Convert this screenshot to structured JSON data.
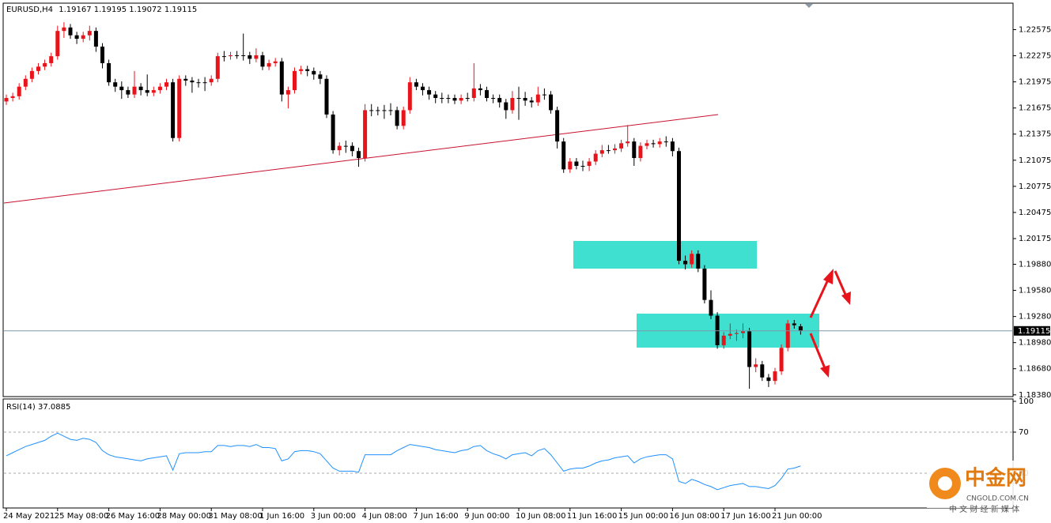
{
  "chart_data": [
    {
      "type": "candlestick",
      "title": "EURUSD,H4",
      "categories": [
        "24 May 2021",
        null,
        null,
        null,
        null,
        null,
        null,
        null,
        "25 May 08:00",
        null,
        null,
        null,
        null,
        null,
        null,
        null,
        "26 May 16:00",
        null,
        null,
        null,
        null,
        null,
        null,
        null,
        "28 May 00:00",
        null,
        null,
        null,
        null,
        null,
        null,
        null,
        "31 May 08:00",
        null,
        null,
        null,
        null,
        null,
        null,
        null,
        "1 Jun 16:00",
        null,
        null,
        null,
        null,
        null,
        null,
        null,
        "3 Jun 00:00",
        null,
        null,
        null,
        null,
        null,
        null,
        null,
        "4 Jun 08:00",
        null,
        null,
        null,
        null,
        null,
        null,
        null,
        "7 Jun 16:00",
        null,
        null,
        null,
        null,
        null,
        null,
        null,
        "9 Jun 00:00",
        null,
        null,
        null,
        null,
        null,
        null,
        null,
        "10 Jun 08:00",
        null,
        null,
        null,
        null,
        null,
        null,
        null,
        "11 Jun 16:00",
        null,
        null,
        null,
        null,
        null,
        null,
        null,
        "15 Jun 00:00",
        null,
        null,
        null,
        null,
        null,
        null,
        null,
        "16 Jun 08:00",
        null,
        null,
        null,
        null,
        null,
        null,
        null,
        "17 Jun 16:00",
        null,
        null,
        null,
        null,
        null,
        null,
        null,
        "21 Jun 00:00",
        null,
        null,
        null,
        null
      ],
      "open": [
        1.2175,
        1.2179,
        1.2181,
        1.2192,
        1.2201,
        1.221,
        1.2215,
        1.2219,
        1.2227,
        1.2256,
        1.226,
        1.2251,
        1.2247,
        1.2251,
        1.2256,
        1.2238,
        1.2219,
        1.2197,
        1.2192,
        1.2188,
        1.2183,
        1.2192,
        1.2188,
        1.2185,
        1.2188,
        1.2192,
        1.2197,
        1.2133,
        1.2201,
        1.2199,
        1.2197,
        1.2197,
        1.2197,
        1.2201,
        1.2227,
        1.2227,
        1.2228,
        1.2228,
        1.2228,
        1.2224,
        1.2228,
        1.2215,
        1.2219,
        1.2221,
        1.2183,
        1.2188,
        1.221,
        1.2212,
        1.221,
        1.2206,
        1.2201,
        1.216,
        1.2119,
        1.2124,
        1.2124,
        1.2118,
        1.211,
        1.2165,
        1.2165,
        1.2165,
        1.2165,
        1.2165,
        1.2147,
        1.2165,
        1.2197,
        1.2192,
        1.2188,
        1.2183,
        1.2179,
        1.2179,
        1.2179,
        1.2176,
        1.2179,
        1.2179,
        1.219,
        1.2188,
        1.2179,
        1.2179,
        1.2174,
        1.2165,
        1.2179,
        1.2179,
        1.2176,
        1.2174,
        1.2183,
        1.2183,
        1.2165,
        1.2129,
        1.2097,
        1.2106,
        1.2101,
        1.2101,
        1.2106,
        1.2115,
        1.2119,
        1.2119,
        1.2121,
        1.2127,
        1.2129,
        1.211,
        1.2124,
        1.2127,
        1.2126,
        1.2129,
        1.2129,
        1.2118,
        1.1992,
        1.1988,
        1.2,
        1.1983,
        1.1947,
        1.1929,
        1.1895,
        1.1906,
        1.1908,
        1.1909,
        1.1911,
        1.187,
        1.1873,
        1.1858,
        1.1854,
        1.1865,
        1.1892,
        1.192,
        1.19167
      ],
      "high": [
        1.2183,
        1.2185,
        1.2196,
        1.2205,
        1.2214,
        1.2219,
        1.2223,
        1.2231,
        1.2262,
        1.2266,
        1.2264,
        1.2255,
        1.2255,
        1.2262,
        1.226,
        1.2242,
        1.2223,
        1.2201,
        1.2198,
        1.2192,
        1.221,
        1.2196,
        1.2206,
        1.2192,
        1.2196,
        1.2201,
        1.2201,
        1.2205,
        1.2205,
        1.2203,
        1.2201,
        1.2203,
        1.2205,
        1.2231,
        1.2233,
        1.2232,
        1.2233,
        1.2253,
        1.2232,
        1.2236,
        1.2232,
        1.2223,
        1.2225,
        1.2225,
        1.2192,
        1.2214,
        1.2216,
        1.2216,
        1.2214,
        1.221,
        1.2205,
        1.2164,
        1.2128,
        1.213,
        1.2128,
        1.2122,
        1.2172,
        1.2172,
        1.2169,
        1.2171,
        1.2173,
        1.2169,
        1.2169,
        1.2203,
        1.2201,
        1.2196,
        1.2192,
        1.2187,
        1.2185,
        1.2183,
        1.2183,
        1.2183,
        1.2185,
        1.2219,
        1.2195,
        1.2192,
        1.2183,
        1.2183,
        1.2178,
        1.2187,
        1.2192,
        1.2186,
        1.218,
        1.2192,
        1.219,
        1.2187,
        1.2169,
        1.2133,
        1.211,
        1.211,
        1.2107,
        1.211,
        1.2119,
        1.2125,
        1.2125,
        1.2126,
        1.2131,
        1.2148,
        1.2133,
        1.2128,
        1.2131,
        1.2131,
        1.2133,
        1.2135,
        1.2133,
        1.2122,
        1.1998,
        1.2004,
        1.2004,
        1.1987,
        1.1958,
        1.1933,
        1.191,
        1.192,
        1.1913,
        1.192,
        1.1915,
        1.188,
        1.1877,
        1.1862,
        1.1869,
        1.1896,
        1.1924,
        1.1924,
        1.19195
      ],
      "low": [
        1.2171,
        1.2175,
        1.2177,
        1.2188,
        1.2197,
        1.2206,
        1.2211,
        1.2215,
        1.2223,
        1.2248,
        1.2247,
        1.2241,
        1.2243,
        1.2245,
        1.2232,
        1.2213,
        1.2193,
        1.2186,
        1.2178,
        1.2179,
        1.2179,
        1.2182,
        1.2181,
        1.2181,
        1.2184,
        1.2188,
        1.2129,
        1.2129,
        1.2193,
        1.2185,
        1.2191,
        1.2187,
        1.2193,
        1.2197,
        1.2221,
        1.2223,
        1.2224,
        1.2222,
        1.2218,
        1.222,
        1.2211,
        1.2211,
        1.2215,
        1.2175,
        1.2167,
        1.2184,
        1.2206,
        1.2204,
        1.22,
        1.2195,
        1.2156,
        1.2115,
        1.2113,
        1.2116,
        1.2112,
        1.21,
        1.2106,
        1.2158,
        1.2159,
        1.2155,
        1.2159,
        1.2143,
        1.2143,
        1.2161,
        1.2188,
        1.2182,
        1.2177,
        1.2173,
        1.2173,
        1.2173,
        1.2172,
        1.2172,
        1.2175,
        1.2175,
        1.2182,
        1.2175,
        1.2173,
        1.2168,
        1.2155,
        1.2161,
        1.2154,
        1.217,
        1.2168,
        1.217,
        1.2177,
        1.2161,
        1.2121,
        1.2093,
        1.2093,
        1.2097,
        1.2095,
        1.2095,
        1.2102,
        1.2111,
        1.2115,
        1.2115,
        1.2117,
        1.2123,
        1.2101,
        1.2106,
        1.212,
        1.2122,
        1.2122,
        1.2123,
        1.2112,
        1.1988,
        1.1982,
        1.1984,
        1.1979,
        1.1943,
        1.1925,
        1.1891,
        1.1891,
        1.1902,
        1.19,
        1.1903,
        1.1845,
        1.1864,
        1.1854,
        1.1847,
        1.185,
        1.1861,
        1.1888,
        1.1914,
        1.19072
      ],
      "close": [
        1.2179,
        1.2181,
        1.2192,
        1.2201,
        1.221,
        1.2215,
        1.2219,
        1.2227,
        1.2256,
        1.226,
        1.2251,
        1.2247,
        1.2251,
        1.2256,
        1.2238,
        1.2219,
        1.2197,
        1.2192,
        1.2188,
        1.2183,
        1.2192,
        1.2188,
        1.2185,
        1.2188,
        1.2192,
        1.2197,
        1.2133,
        1.2201,
        1.2199,
        1.2197,
        1.2197,
        1.2197,
        1.2201,
        1.2227,
        1.2227,
        1.2228,
        1.2228,
        1.2228,
        1.2224,
        1.2228,
        1.2215,
        1.2219,
        1.2221,
        1.2183,
        1.2188,
        1.221,
        1.2212,
        1.221,
        1.2206,
        1.2201,
        1.216,
        1.2119,
        1.2124,
        1.2124,
        1.2118,
        1.211,
        1.2165,
        1.2165,
        1.2165,
        1.2165,
        1.2165,
        1.2147,
        1.2165,
        1.2197,
        1.2192,
        1.2188,
        1.2183,
        1.2179,
        1.2179,
        1.2179,
        1.2176,
        1.2179,
        1.2179,
        1.219,
        1.2188,
        1.2179,
        1.2179,
        1.2174,
        1.2165,
        1.2179,
        1.2179,
        1.2176,
        1.2174,
        1.2183,
        1.2183,
        1.2165,
        1.2129,
        1.2097,
        1.2106,
        1.2101,
        1.2101,
        1.2106,
        1.2115,
        1.2119,
        1.2119,
        1.2121,
        1.2127,
        1.2129,
        1.211,
        1.2124,
        1.2127,
        1.2126,
        1.2129,
        1.2129,
        1.2118,
        1.1992,
        1.1988,
        1.2,
        1.1983,
        1.1947,
        1.1929,
        1.1895,
        1.1906,
        1.1908,
        1.1909,
        1.1911,
        1.187,
        1.1873,
        1.1858,
        1.1854,
        1.1865,
        1.1892,
        1.192,
        1.1918,
        1.19115
      ],
      "up_color": "#e8141b",
      "down_color": "#000000",
      "price_line_color": "#7a9aa8",
      "ylim": [
        1.1836,
        1.2287
      ],
      "yticks": [
        1.22575,
        1.22275,
        1.21975,
        1.21675,
        1.21375,
        1.21075,
        1.20775,
        1.20475,
        1.20175,
        {
          "value": 1.1988,
          "label": "1.19880"
        },
        {
          "value": 1.1958,
          "label": "1.19580"
        },
        {
          "value": 1.1928,
          "label": "1.19280"
        },
        {
          "value": 1.1898,
          "label": "1.18980"
        },
        {
          "value": 1.1868,
          "label": "1.18680"
        },
        {
          "value": 1.1838,
          "label": "1.18380"
        }
      ],
      "grid": false
    },
    {
      "type": "line",
      "title": "RSI(14)",
      "color": "#1e90ff",
      "values": [
        47,
        50,
        53,
        56,
        58,
        60,
        62,
        66,
        69,
        66,
        63,
        62,
        64,
        63,
        60,
        52,
        48,
        46,
        45,
        44,
        43,
        42,
        44,
        45,
        46,
        47,
        33,
        49,
        50,
        50,
        50,
        51,
        51,
        57,
        57,
        56,
        57,
        57,
        56,
        58,
        55,
        55,
        54,
        42,
        44,
        51,
        52,
        52,
        51,
        49,
        42,
        35,
        32,
        32,
        32,
        31,
        48,
        48,
        48,
        48,
        48,
        52,
        55,
        58,
        57,
        56,
        55,
        53,
        52,
        51,
        50,
        52,
        53,
        56,
        57,
        52,
        49,
        47,
        44,
        48,
        49,
        50,
        47,
        52,
        54,
        48,
        40,
        32,
        34,
        35,
        35,
        37,
        40,
        42,
        43,
        45,
        46,
        47,
        40,
        44,
        46,
        47,
        48,
        48,
        44,
        22,
        20,
        24,
        22,
        19,
        17,
        14,
        16,
        18,
        19,
        20,
        17,
        17,
        16,
        15,
        18,
        25,
        34,
        35,
        37.0885
      ],
      "ylim": [
        0,
        100
      ],
      "yticks": [
        100,
        70,
        30
      ],
      "grid": true
    }
  ],
  "watermark": {
    "name": "中金网",
    "site": "CNGOLD.COM.CN",
    "slogan": "中 文 财 经 新 媒 体"
  }
}
